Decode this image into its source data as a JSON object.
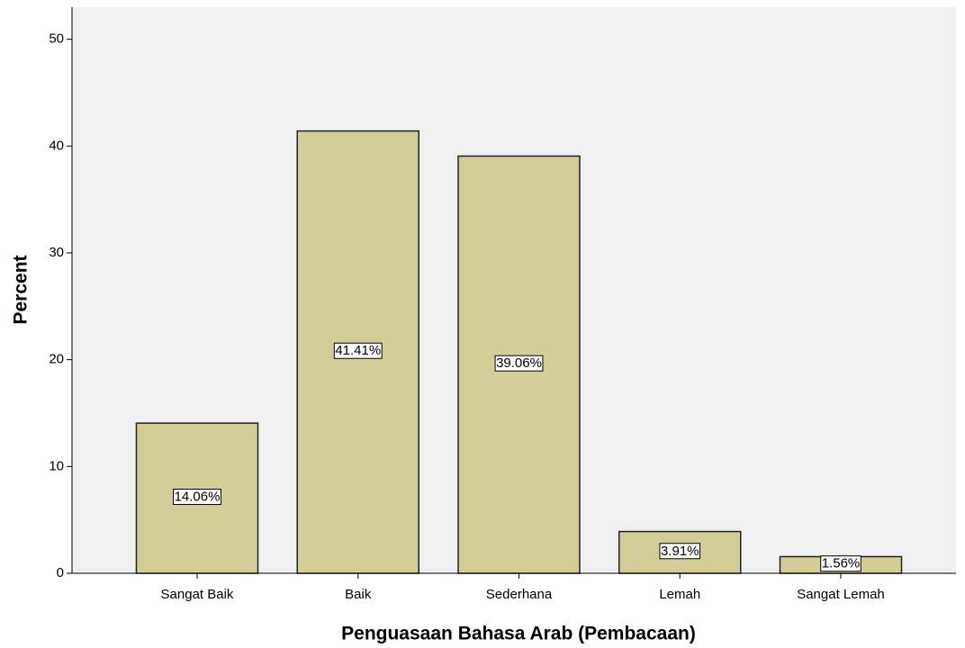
{
  "chart_data": {
    "type": "bar",
    "y_label": "Percent",
    "x_label": "Penguasaan Bahasa Arab (Pembacaan)",
    "categories": [
      "Sangat Baik",
      "Baik",
      "Sederhana",
      "Lemah",
      "Sangat Lemah"
    ],
    "values": [
      14.06,
      41.41,
      39.06,
      3.91,
      1.56
    ],
    "value_labels": [
      "14.06%",
      "41.41%",
      "39.06%",
      "3.91%",
      "1.56%"
    ],
    "color": "#d3ce97",
    "ylim": [
      0,
      53
    ],
    "yticks": [
      0,
      10,
      20,
      30,
      40,
      50
    ],
    "grid": false
  }
}
